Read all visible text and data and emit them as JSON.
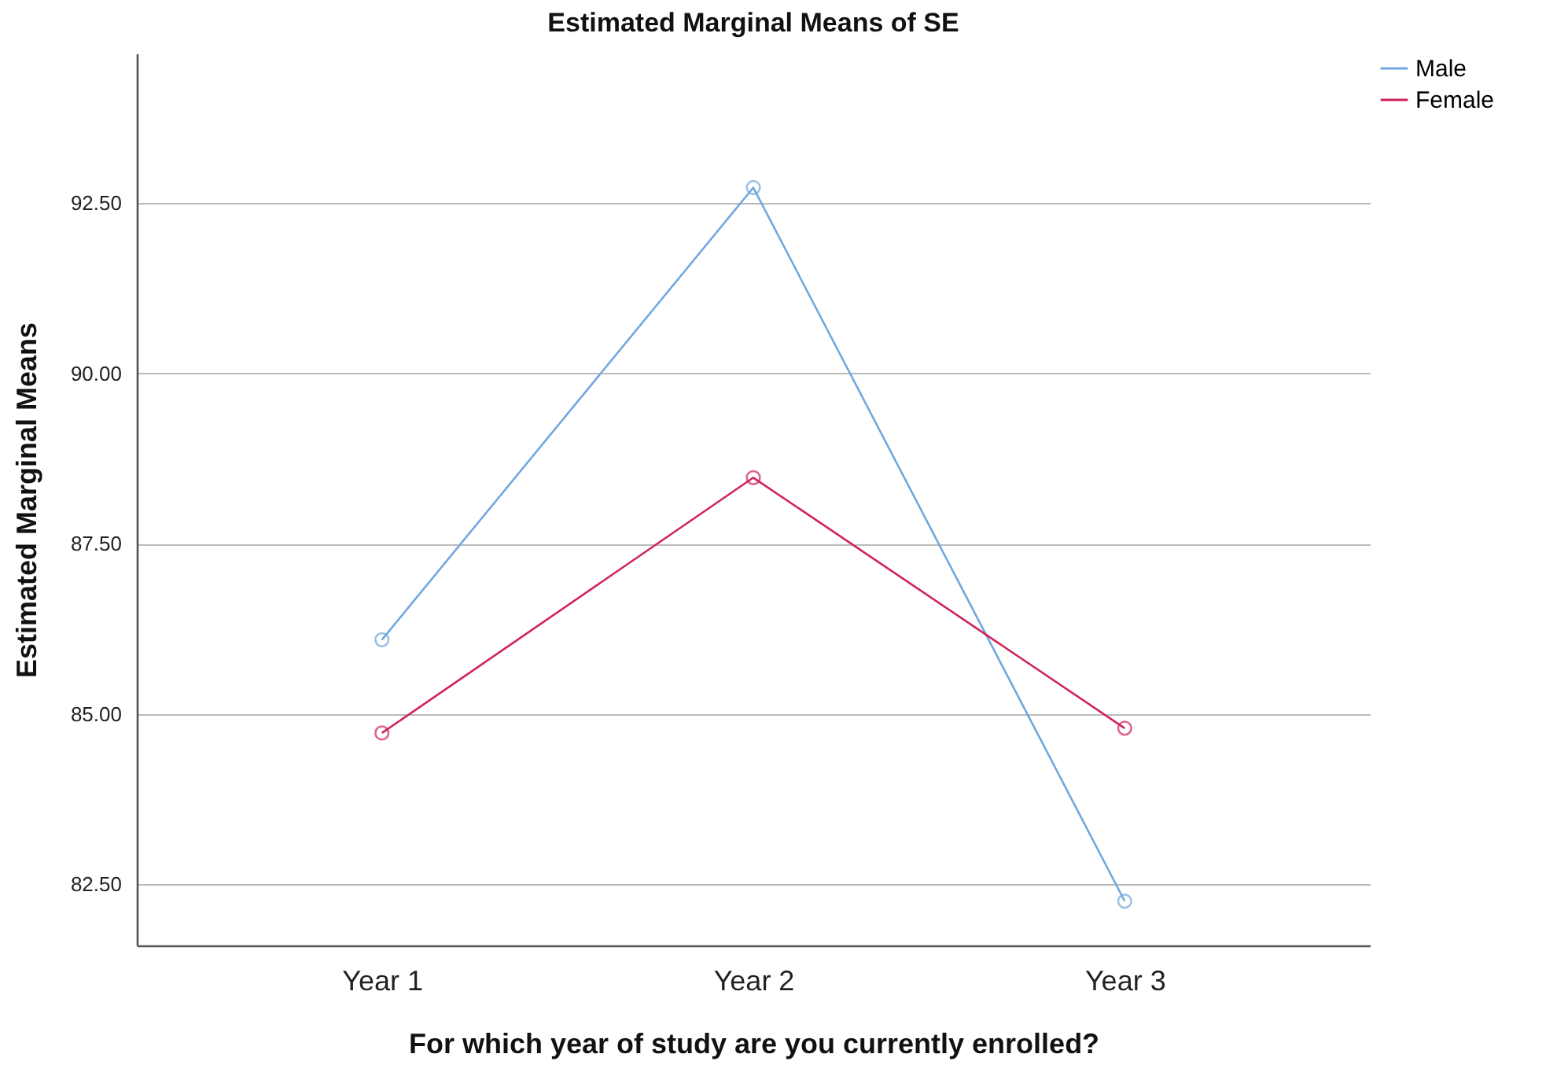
{
  "chart_data": {
    "type": "line",
    "title": "Estimated Marginal Means of SE",
    "xlabel": "For which year of study are you currently enrolled?",
    "ylabel": "Estimated Marginal Means",
    "categories": [
      "Year 1",
      "Year 2",
      "Year 3"
    ],
    "series": [
      {
        "name": "Male",
        "color": "#6fa8e0",
        "values": [
          86.09,
          92.73,
          82.25
        ]
      },
      {
        "name": "Female",
        "color": "#d0245a",
        "values": [
          84.72,
          88.47,
          84.79
        ]
      }
    ],
    "ylim": [
      81.6,
      94.7
    ],
    "yticks": [
      {
        "value": 82.5,
        "label": "82.50"
      },
      {
        "value": 85,
        "label": "85.00"
      },
      {
        "value": 87.5,
        "label": "87.50"
      },
      {
        "value": 90,
        "label": "90.00"
      },
      {
        "value": 92.5,
        "label": "92.50"
      }
    ],
    "grid": "y",
    "legend": "right",
    "marker": "circle",
    "line_style": "solid"
  }
}
